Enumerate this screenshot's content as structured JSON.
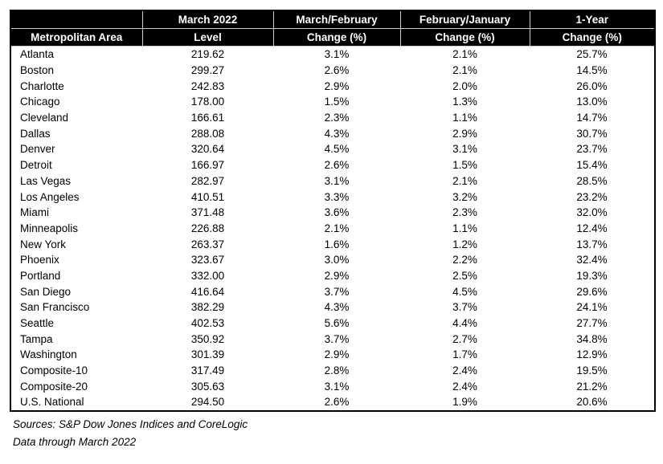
{
  "chart_data": {
    "type": "table",
    "header_row1": [
      "",
      "March 2022",
      "March/February",
      "February/January",
      "1-Year"
    ],
    "header_row2": [
      "Metropolitan Area",
      "Level",
      "Change (%)",
      "Change (%)",
      "Change (%)"
    ],
    "columns": [
      "Metropolitan Area",
      "March 2022 Level",
      "March/February Change (%)",
      "February/January Change (%)",
      "1-Year Change (%)"
    ],
    "rows": [
      [
        "Atlanta",
        "219.62",
        "3.1%",
        "2.1%",
        "25.7%"
      ],
      [
        "Boston",
        "299.27",
        "2.6%",
        "2.1%",
        "14.5%"
      ],
      [
        "Charlotte",
        "242.83",
        "2.9%",
        "2.0%",
        "26.0%"
      ],
      [
        "Chicago",
        "178.00",
        "1.5%",
        "1.3%",
        "13.0%"
      ],
      [
        "Cleveland",
        "166.61",
        "2.3%",
        "1.1%",
        "14.7%"
      ],
      [
        "Dallas",
        "288.08",
        "4.3%",
        "2.9%",
        "30.7%"
      ],
      [
        "Denver",
        "320.64",
        "4.5%",
        "3.1%",
        "23.7%"
      ],
      [
        "Detroit",
        "166.97",
        "2.6%",
        "1.5%",
        "15.4%"
      ],
      [
        "Las Vegas",
        "282.97",
        "3.1%",
        "2.1%",
        "28.5%"
      ],
      [
        "Los Angeles",
        "410.51",
        "3.3%",
        "3.2%",
        "23.2%"
      ],
      [
        "Miami",
        "371.48",
        "3.6%",
        "2.3%",
        "32.0%"
      ],
      [
        "Minneapolis",
        "226.88",
        "2.1%",
        "1.1%",
        "12.4%"
      ],
      [
        "New York",
        "263.37",
        "1.6%",
        "1.2%",
        "13.7%"
      ],
      [
        "Phoenix",
        "323.67",
        "3.0%",
        "2.2%",
        "32.4%"
      ],
      [
        "Portland",
        "332.00",
        "2.9%",
        "2.5%",
        "19.3%"
      ],
      [
        "San Diego",
        "416.64",
        "3.7%",
        "4.5%",
        "29.6%"
      ],
      [
        "San Francisco",
        "382.29",
        "4.3%",
        "3.7%",
        "24.1%"
      ],
      [
        "Seattle",
        "402.53",
        "5.6%",
        "4.4%",
        "27.7%"
      ],
      [
        "Tampa",
        "350.92",
        "3.7%",
        "2.7%",
        "34.8%"
      ],
      [
        "Washington",
        "301.39",
        "2.9%",
        "1.7%",
        "12.9%"
      ],
      [
        "Composite-10",
        "317.49",
        "2.8%",
        "2.4%",
        "19.5%"
      ],
      [
        "Composite-20",
        "305.63",
        "3.1%",
        "2.4%",
        "21.2%"
      ],
      [
        "U.S. National",
        "294.50",
        "2.6%",
        "1.9%",
        "20.6%"
      ]
    ]
  },
  "footer": {
    "sources": "Sources: S&P Dow Jones Indices and CoreLogic",
    "data_through": "Data through March 2022"
  },
  "colors": {
    "header_bg": "#000000",
    "header_text": "#ffffff",
    "grid_line": "#cfcfcf",
    "border": "#000000",
    "text": "#000000"
  }
}
